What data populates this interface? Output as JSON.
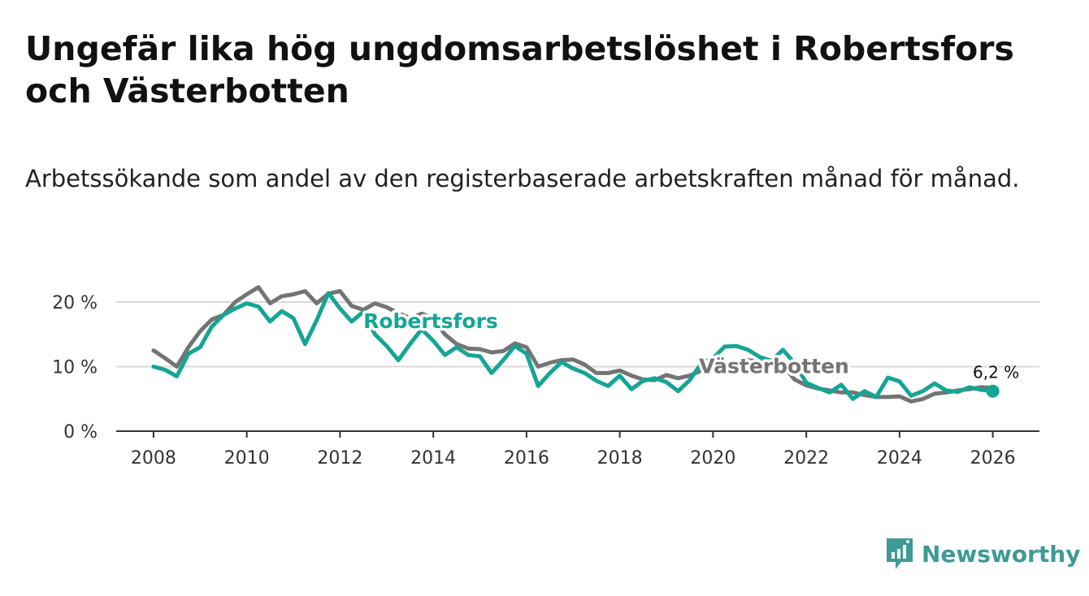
{
  "title": "Ungefär lika hög ungdomsarbetslöshet i Robertsfors och Västerbotten",
  "subtitle": "Arbetssökande som andel av den registerbaserade arbetskraften månad för månad.",
  "brand": "Newsworthy",
  "colors": {
    "robertsfors": "#14a595",
    "vasterbotten": "#757475",
    "grid": "#d9d9d9",
    "axis": "#333333",
    "brand": "#3e9a95"
  },
  "chart_data": {
    "type": "line",
    "title": "Ungefär lika hög ungdomsarbetslöshet i Robertsfors och Västerbotten",
    "xlabel": "",
    "ylabel": "",
    "xlim": [
      2007.2,
      2027.0
    ],
    "ylim": [
      0,
      20
    ],
    "y_ticks": [
      0,
      10,
      20
    ],
    "y_tick_labels": [
      "0 %",
      "10 %",
      "20 %"
    ],
    "x_ticks": [
      2008,
      2010,
      2012,
      2014,
      2016,
      2018,
      2020,
      2022,
      2024,
      2026
    ],
    "x_tick_labels": [
      "2008",
      "2010",
      "2012",
      "2014",
      "2016",
      "2018",
      "2020",
      "2022",
      "2024",
      "2026"
    ],
    "grid": true,
    "series": [
      {
        "name": "Västerbotten",
        "label": "Västerbotten",
        "label_position": [
          2019.7,
          9.0
        ],
        "x": [
          2008.0,
          2008.25,
          2008.5,
          2008.75,
          2009.0,
          2009.25,
          2009.5,
          2009.75,
          2010.0,
          2010.25,
          2010.5,
          2010.75,
          2011.0,
          2011.25,
          2011.5,
          2011.75,
          2012.0,
          2012.25,
          2012.5,
          2012.75,
          2013.0,
          2013.25,
          2013.5,
          2013.75,
          2014.0,
          2014.25,
          2014.5,
          2014.75,
          2015.0,
          2015.25,
          2015.5,
          2015.75,
          2016.0,
          2016.25,
          2016.5,
          2016.75,
          2017.0,
          2017.25,
          2017.5,
          2017.75,
          2018.0,
          2018.25,
          2018.5,
          2018.75,
          2019.0,
          2019.25,
          2019.5,
          2019.75,
          2020.0,
          2020.25,
          2020.5,
          2020.75,
          2021.0,
          2021.25,
          2021.5,
          2021.75,
          2022.0,
          2022.25,
          2022.5,
          2022.75,
          2023.0,
          2023.25,
          2023.5,
          2023.75,
          2024.0,
          2024.25,
          2024.5,
          2024.75,
          2025.0,
          2025.25,
          2025.5,
          2025.75,
          2026.0
        ],
        "values": [
          12.5,
          11.3,
          10.0,
          13.0,
          15.5,
          17.3,
          18.0,
          20.0,
          21.2,
          22.3,
          19.8,
          20.9,
          21.2,
          21.7,
          19.8,
          21.3,
          21.7,
          19.4,
          18.8,
          19.8,
          19.2,
          18.3,
          17.5,
          18.2,
          17.5,
          15.0,
          13.5,
          12.8,
          12.7,
          12.2,
          12.4,
          13.6,
          13.0,
          10.0,
          10.6,
          11.0,
          11.1,
          10.3,
          9.0,
          9.0,
          9.4,
          8.6,
          8.0,
          7.9,
          8.7,
          8.2,
          8.6,
          9.4,
          10.0,
          10.3,
          10.7,
          11.0,
          10.8,
          10.5,
          10.1,
          8.0,
          7.1,
          6.6,
          6.3,
          6.0,
          6.0,
          5.6,
          5.3,
          5.3,
          5.4,
          4.6,
          5.0,
          5.8,
          6.0,
          6.3,
          6.5,
          6.8,
          6.7
        ]
      },
      {
        "name": "Robertsfors",
        "label": "Robertsfors",
        "label_position": [
          2012.5,
          16.0
        ],
        "end_label": "6,2 %",
        "end_value": 6.2,
        "x": [
          2008.0,
          2008.25,
          2008.5,
          2008.75,
          2009.0,
          2009.25,
          2009.5,
          2009.75,
          2010.0,
          2010.25,
          2010.5,
          2010.75,
          2011.0,
          2011.25,
          2011.5,
          2011.75,
          2012.0,
          2012.25,
          2012.5,
          2012.75,
          2013.0,
          2013.25,
          2013.5,
          2013.75,
          2014.0,
          2014.25,
          2014.5,
          2014.75,
          2015.0,
          2015.25,
          2015.5,
          2015.75,
          2016.0,
          2016.25,
          2016.5,
          2016.75,
          2017.0,
          2017.25,
          2017.5,
          2017.75,
          2018.0,
          2018.25,
          2018.5,
          2018.75,
          2019.0,
          2019.25,
          2019.5,
          2019.75,
          2020.0,
          2020.25,
          2020.5,
          2020.75,
          2021.0,
          2021.25,
          2021.5,
          2021.75,
          2022.0,
          2022.25,
          2022.5,
          2022.75,
          2023.0,
          2023.25,
          2023.5,
          2023.75,
          2024.0,
          2024.25,
          2024.5,
          2024.75,
          2025.0,
          2025.25,
          2025.5,
          2025.75,
          2026.0
        ],
        "values": [
          10.0,
          9.5,
          8.5,
          12.0,
          13.0,
          16.2,
          18.0,
          19.0,
          19.8,
          19.3,
          17.0,
          18.6,
          17.5,
          13.5,
          17.2,
          21.4,
          19.0,
          17.0,
          18.5,
          15.0,
          13.2,
          11.0,
          13.5,
          15.8,
          14.0,
          11.8,
          13.0,
          11.8,
          11.6,
          9.0,
          11.0,
          13.2,
          12.0,
          7.0,
          9.0,
          10.7,
          9.7,
          9.0,
          7.8,
          7.0,
          8.6,
          6.5,
          7.8,
          8.2,
          7.6,
          6.2,
          7.9,
          10.5,
          11.3,
          13.1,
          13.2,
          12.6,
          11.5,
          10.9,
          12.6,
          10.5,
          7.5,
          6.7,
          6.0,
          7.2,
          5.0,
          6.2,
          5.3,
          8.3,
          7.7,
          5.5,
          6.2,
          7.4,
          6.3,
          6.1,
          6.8,
          6.4,
          6.2
        ]
      }
    ]
  }
}
